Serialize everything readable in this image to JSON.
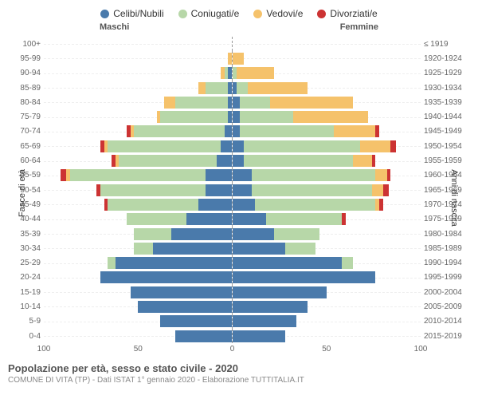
{
  "legend": [
    {
      "label": "Celibi/Nubili",
      "color": "#4a7aab"
    },
    {
      "label": "Coniugati/e",
      "color": "#b7d7a8"
    },
    {
      "label": "Vedovi/e",
      "color": "#f5c26b"
    },
    {
      "label": "Divorziati/e",
      "color": "#cc3333"
    }
  ],
  "headers": {
    "male": "Maschi",
    "female": "Femmine"
  },
  "axis_titles": {
    "left": "Fasce di età",
    "right": "Anni di nascita"
  },
  "x": {
    "max": 100,
    "ticks_left": [
      100,
      50,
      0
    ],
    "ticks_right": [
      50,
      100
    ]
  },
  "colors": {
    "celibi": "#4a7aab",
    "coniugati": "#b7d7a8",
    "vedovi": "#f5c26b",
    "divorziati": "#cc3333"
  },
  "rows": [
    {
      "age": "100+",
      "birth": "≤ 1919",
      "m": [
        0,
        0,
        0,
        0
      ],
      "f": [
        0,
        0,
        0,
        0
      ]
    },
    {
      "age": "95-99",
      "birth": "1920-1924",
      "m": [
        0,
        0,
        2,
        0
      ],
      "f": [
        0,
        0,
        6,
        0
      ]
    },
    {
      "age": "90-94",
      "birth": "1925-1929",
      "m": [
        2,
        2,
        2,
        0
      ],
      "f": [
        0,
        2,
        20,
        0
      ]
    },
    {
      "age": "85-89",
      "birth": "1930-1934",
      "m": [
        2,
        12,
        4,
        0
      ],
      "f": [
        2,
        6,
        32,
        0
      ]
    },
    {
      "age": "80-84",
      "birth": "1935-1939",
      "m": [
        2,
        28,
        6,
        0
      ],
      "f": [
        4,
        16,
        44,
        0
      ]
    },
    {
      "age": "75-79",
      "birth": "1940-1944",
      "m": [
        2,
        36,
        2,
        0
      ],
      "f": [
        4,
        28,
        40,
        0
      ]
    },
    {
      "age": "70-74",
      "birth": "1945-1949",
      "m": [
        4,
        48,
        2,
        2
      ],
      "f": [
        4,
        50,
        22,
        2
      ]
    },
    {
      "age": "65-69",
      "birth": "1950-1954",
      "m": [
        6,
        60,
        2,
        2
      ],
      "f": [
        6,
        62,
        16,
        3
      ]
    },
    {
      "age": "60-64",
      "birth": "1955-1959",
      "m": [
        8,
        52,
        2,
        2
      ],
      "f": [
        6,
        58,
        10,
        2
      ]
    },
    {
      "age": "55-59",
      "birth": "1960-1964",
      "m": [
        14,
        72,
        2,
        3
      ],
      "f": [
        10,
        66,
        6,
        2
      ]
    },
    {
      "age": "50-54",
      "birth": "1965-1969",
      "m": [
        14,
        56,
        0,
        2
      ],
      "f": [
        10,
        64,
        6,
        3
      ]
    },
    {
      "age": "45-49",
      "birth": "1970-1974",
      "m": [
        18,
        48,
        0,
        2
      ],
      "f": [
        12,
        64,
        2,
        2
      ]
    },
    {
      "age": "40-44",
      "birth": "1975-1979",
      "m": [
        24,
        32,
        0,
        0
      ],
      "f": [
        18,
        40,
        0,
        2
      ]
    },
    {
      "age": "35-39",
      "birth": "1980-1984",
      "m": [
        32,
        20,
        0,
        0
      ],
      "f": [
        22,
        24,
        0,
        0
      ]
    },
    {
      "age": "30-34",
      "birth": "1985-1989",
      "m": [
        42,
        10,
        0,
        0
      ],
      "f": [
        28,
        16,
        0,
        0
      ]
    },
    {
      "age": "25-29",
      "birth": "1990-1994",
      "m": [
        62,
        4,
        0,
        0
      ],
      "f": [
        58,
        6,
        0,
        0
      ]
    },
    {
      "age": "20-24",
      "birth": "1995-1999",
      "m": [
        70,
        0,
        0,
        0
      ],
      "f": [
        76,
        0,
        0,
        0
      ]
    },
    {
      "age": "15-19",
      "birth": "2000-2004",
      "m": [
        54,
        0,
        0,
        0
      ],
      "f": [
        50,
        0,
        0,
        0
      ]
    },
    {
      "age": "10-14",
      "birth": "2005-2009",
      "m": [
        50,
        0,
        0,
        0
      ],
      "f": [
        40,
        0,
        0,
        0
      ]
    },
    {
      "age": "5-9",
      "birth": "2010-2014",
      "m": [
        38,
        0,
        0,
        0
      ],
      "f": [
        34,
        0,
        0,
        0
      ]
    },
    {
      "age": "0-4",
      "birth": "2015-2019",
      "m": [
        30,
        0,
        0,
        0
      ],
      "f": [
        28,
        0,
        0,
        0
      ]
    }
  ],
  "footer": {
    "title": "Popolazione per età, sesso e stato civile - 2020",
    "sub": "COMUNE DI VITA (TP) - Dati ISTAT 1° gennaio 2020 - Elaborazione TUTTITALIA.IT"
  }
}
